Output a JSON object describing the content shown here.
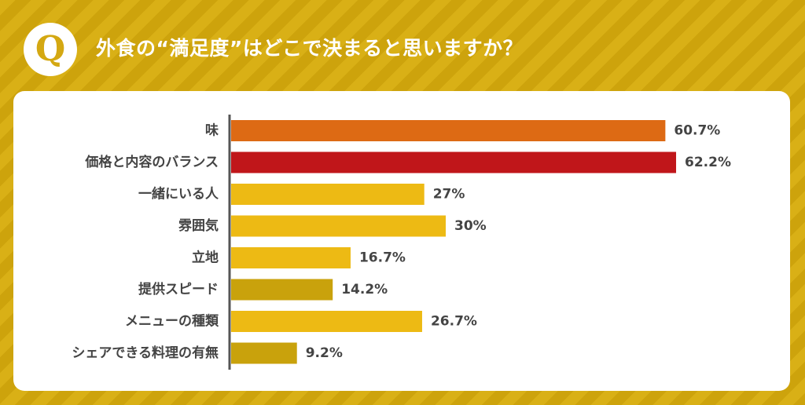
{
  "header": {
    "badge": "Q",
    "title": "外食の“満足度”はどこで決まると思いますか？"
  },
  "colors": {
    "orange": "#dd6a14",
    "red": "#c0161a",
    "yellow": "#edba14",
    "olive": "#c9a20c",
    "axis": "#555555"
  },
  "chart_data": {
    "type": "bar",
    "orientation": "horizontal",
    "title": "外食の“満足度”はどこで決まると思いますか？",
    "unit": "%",
    "xlim": [
      0,
      70
    ],
    "grid": false,
    "legend": "none",
    "categories": [
      "味",
      "価格と内容のバランス",
      "一緒にいる人",
      "雰囲気",
      "立地",
      "提供スピード",
      "メニューの種類",
      "シェアできる料理の有無"
    ],
    "values": [
      60.7,
      62.2,
      27,
      30,
      16.7,
      14.2,
      26.7,
      9.2
    ],
    "labels": [
      "60.7%",
      "62.2%",
      "27%",
      "30%",
      "16.7%",
      "14.2%",
      "26.7%",
      "9.2%"
    ],
    "bar_colors": [
      "#dd6a14",
      "#c0161a",
      "#edba14",
      "#edba14",
      "#edba14",
      "#c9a20c",
      "#edba14",
      "#c9a20c"
    ]
  }
}
